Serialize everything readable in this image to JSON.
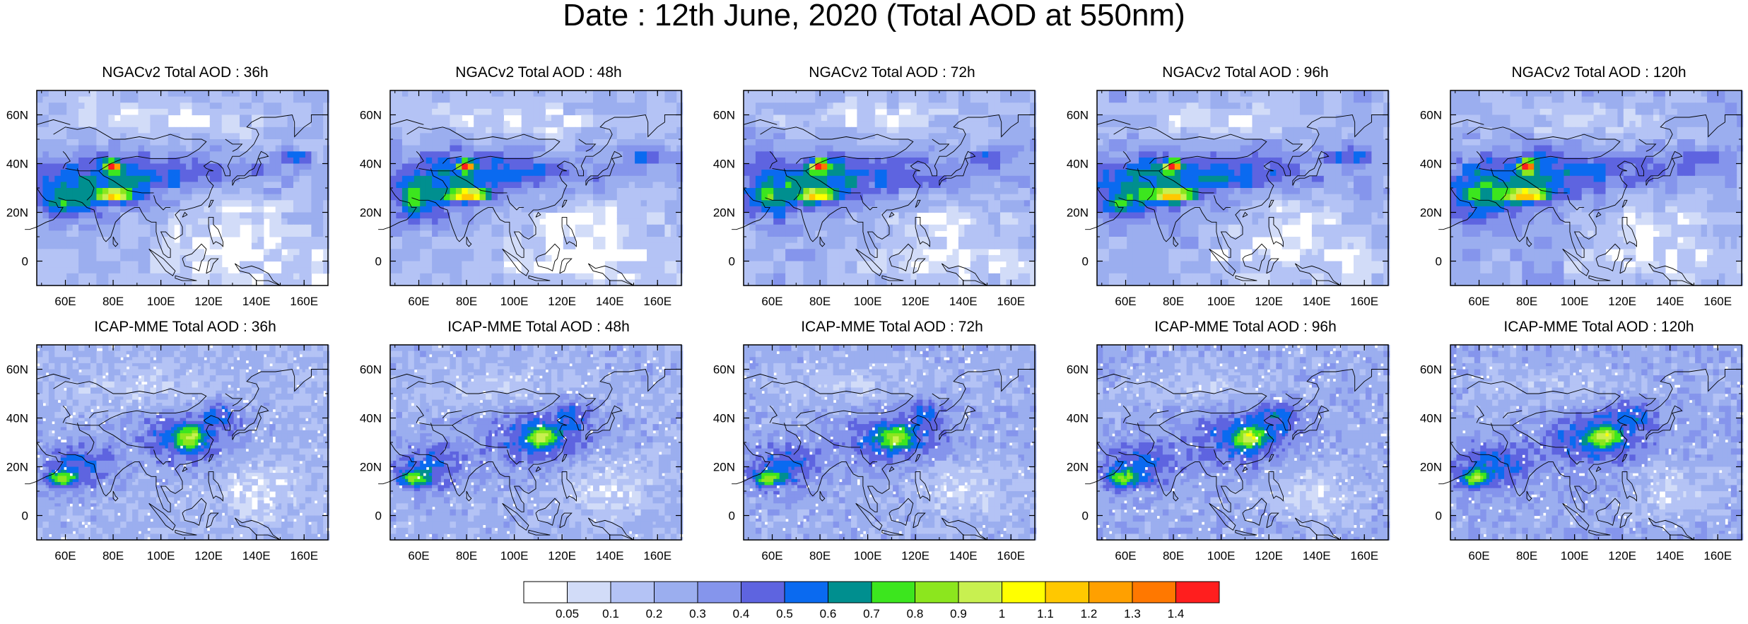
{
  "title": "Date : 12th June, 2020 (Total AOD at 550nm)",
  "map": {
    "lat_ticks": [
      "60N",
      "40N",
      "20N",
      "0"
    ],
    "lon_ticks": [
      "60E",
      "80E",
      "100E",
      "120E",
      "140E",
      "160E"
    ],
    "lon_range": [
      48,
      170
    ],
    "lat_range": [
      -10,
      70
    ]
  },
  "panels": [
    {
      "title": "NGACv2 Total AOD : 36h",
      "model": "NGACv2"
    },
    {
      "title": "NGACv2 Total AOD : 48h",
      "model": "NGACv2"
    },
    {
      "title": "NGACv2 Total AOD : 72h",
      "model": "NGACv2"
    },
    {
      "title": "NGACv2 Total AOD : 96h",
      "model": "NGACv2"
    },
    {
      "title": "NGACv2 Total AOD : 120h",
      "model": "NGACv2"
    },
    {
      "title": "ICAP-MME Total AOD : 36h",
      "model": "ICAP"
    },
    {
      "title": "ICAP-MME Total AOD : 48h",
      "model": "ICAP"
    },
    {
      "title": "ICAP-MME Total AOD : 72h",
      "model": "ICAP"
    },
    {
      "title": "ICAP-MME Total AOD : 96h",
      "model": "ICAP"
    },
    {
      "title": "ICAP-MME Total AOD : 120h",
      "model": "ICAP"
    }
  ],
  "colorbar": {
    "labels": [
      "0.05",
      "0.1",
      "0.2",
      "0.3",
      "0.4",
      "0.5",
      "0.6",
      "0.7",
      "0.8",
      "0.9",
      "1",
      "1.1",
      "1.2",
      "1.3",
      "1.4"
    ],
    "colors": [
      "#ffffff",
      "#d2dcf8",
      "#b4c3f5",
      "#9baeef",
      "#8595ec",
      "#5e64e0",
      "#0a6af0",
      "#008f8f",
      "#3ce61e",
      "#8ce61e",
      "#c8f050",
      "#ffff00",
      "#ffc800",
      "#ffa000",
      "#ff7800",
      "#ff1e1e"
    ]
  }
}
